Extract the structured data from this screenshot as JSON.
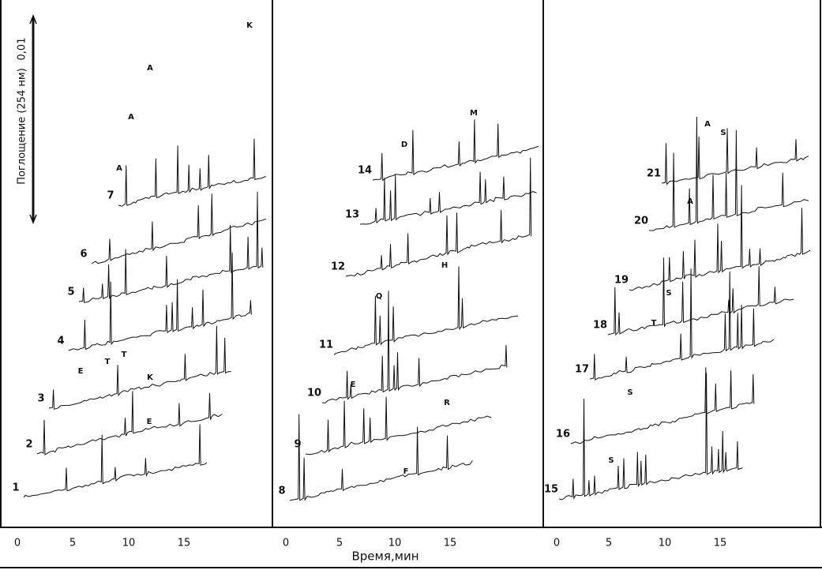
{
  "y_axis": {
    "label": "Поглощение (254 нм)",
    "scale": "0,01"
  },
  "x_axis_label": "Время,мин",
  "panels": [
    {
      "x_ticks": [
        "0",
        "5",
        "10",
        "15"
      ],
      "traces": [
        "1",
        "2",
        "3",
        "4",
        "5",
        "6",
        "7"
      ],
      "peaks": [
        "K",
        "A",
        "A",
        "A",
        "E",
        "T",
        "T",
        "K",
        "E"
      ]
    },
    {
      "x_ticks": [
        "0",
        "5",
        "10",
        "15"
      ],
      "traces": [
        "8",
        "9",
        "10",
        "11",
        "12",
        "13",
        "14"
      ],
      "peaks": [
        "D",
        "M",
        "H",
        "Q",
        "E",
        "R",
        "F"
      ]
    },
    {
      "x_ticks": [
        "0",
        "5",
        "10",
        "15"
      ],
      "traces": [
        "15",
        "16",
        "17",
        "18",
        "19",
        "20",
        "21"
      ],
      "peaks": [
        "A",
        "S",
        "A",
        "S",
        "T",
        "S",
        "S"
      ]
    }
  ]
}
